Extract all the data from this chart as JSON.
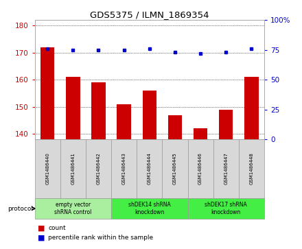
{
  "title": "GDS5375 / ILMN_1869354",
  "samples": [
    "GSM1486440",
    "GSM1486441",
    "GSM1486442",
    "GSM1486443",
    "GSM1486444",
    "GSM1486445",
    "GSM1486446",
    "GSM1486447",
    "GSM1486448"
  ],
  "counts": [
    172,
    161,
    159,
    151,
    156,
    147,
    142,
    149,
    161
  ],
  "percentiles": [
    76,
    75,
    75,
    75,
    76,
    73,
    72,
    73,
    76
  ],
  "ylim_left": [
    138,
    182
  ],
  "ylim_right": [
    0,
    100
  ],
  "yticks_left": [
    140,
    150,
    160,
    170,
    180
  ],
  "yticks_right": [
    0,
    25,
    50,
    75,
    100
  ],
  "bar_color": "#cc0000",
  "dot_color": "#0000cc",
  "bar_base": 138,
  "groups": [
    {
      "label": "empty vector\nshRNA control",
      "start": 0,
      "end": 3,
      "color": "#aaeea0"
    },
    {
      "label": "shDEK14 shRNA\nknockdown",
      "start": 3,
      "end": 6,
      "color": "#44ee44"
    },
    {
      "label": "shDEK17 shRNA\nknockdown",
      "start": 6,
      "end": 9,
      "color": "#44ee44"
    }
  ],
  "legend_count_label": "count",
  "legend_pct_label": "percentile rank within the sample",
  "protocol_label": "protocol",
  "tick_color_left": "#cc0000",
  "tick_color_right": "#0000cc",
  "sample_box_color": "#d8d8d8",
  "sample_box_edge": "#999999",
  "grid_color": "#000000"
}
